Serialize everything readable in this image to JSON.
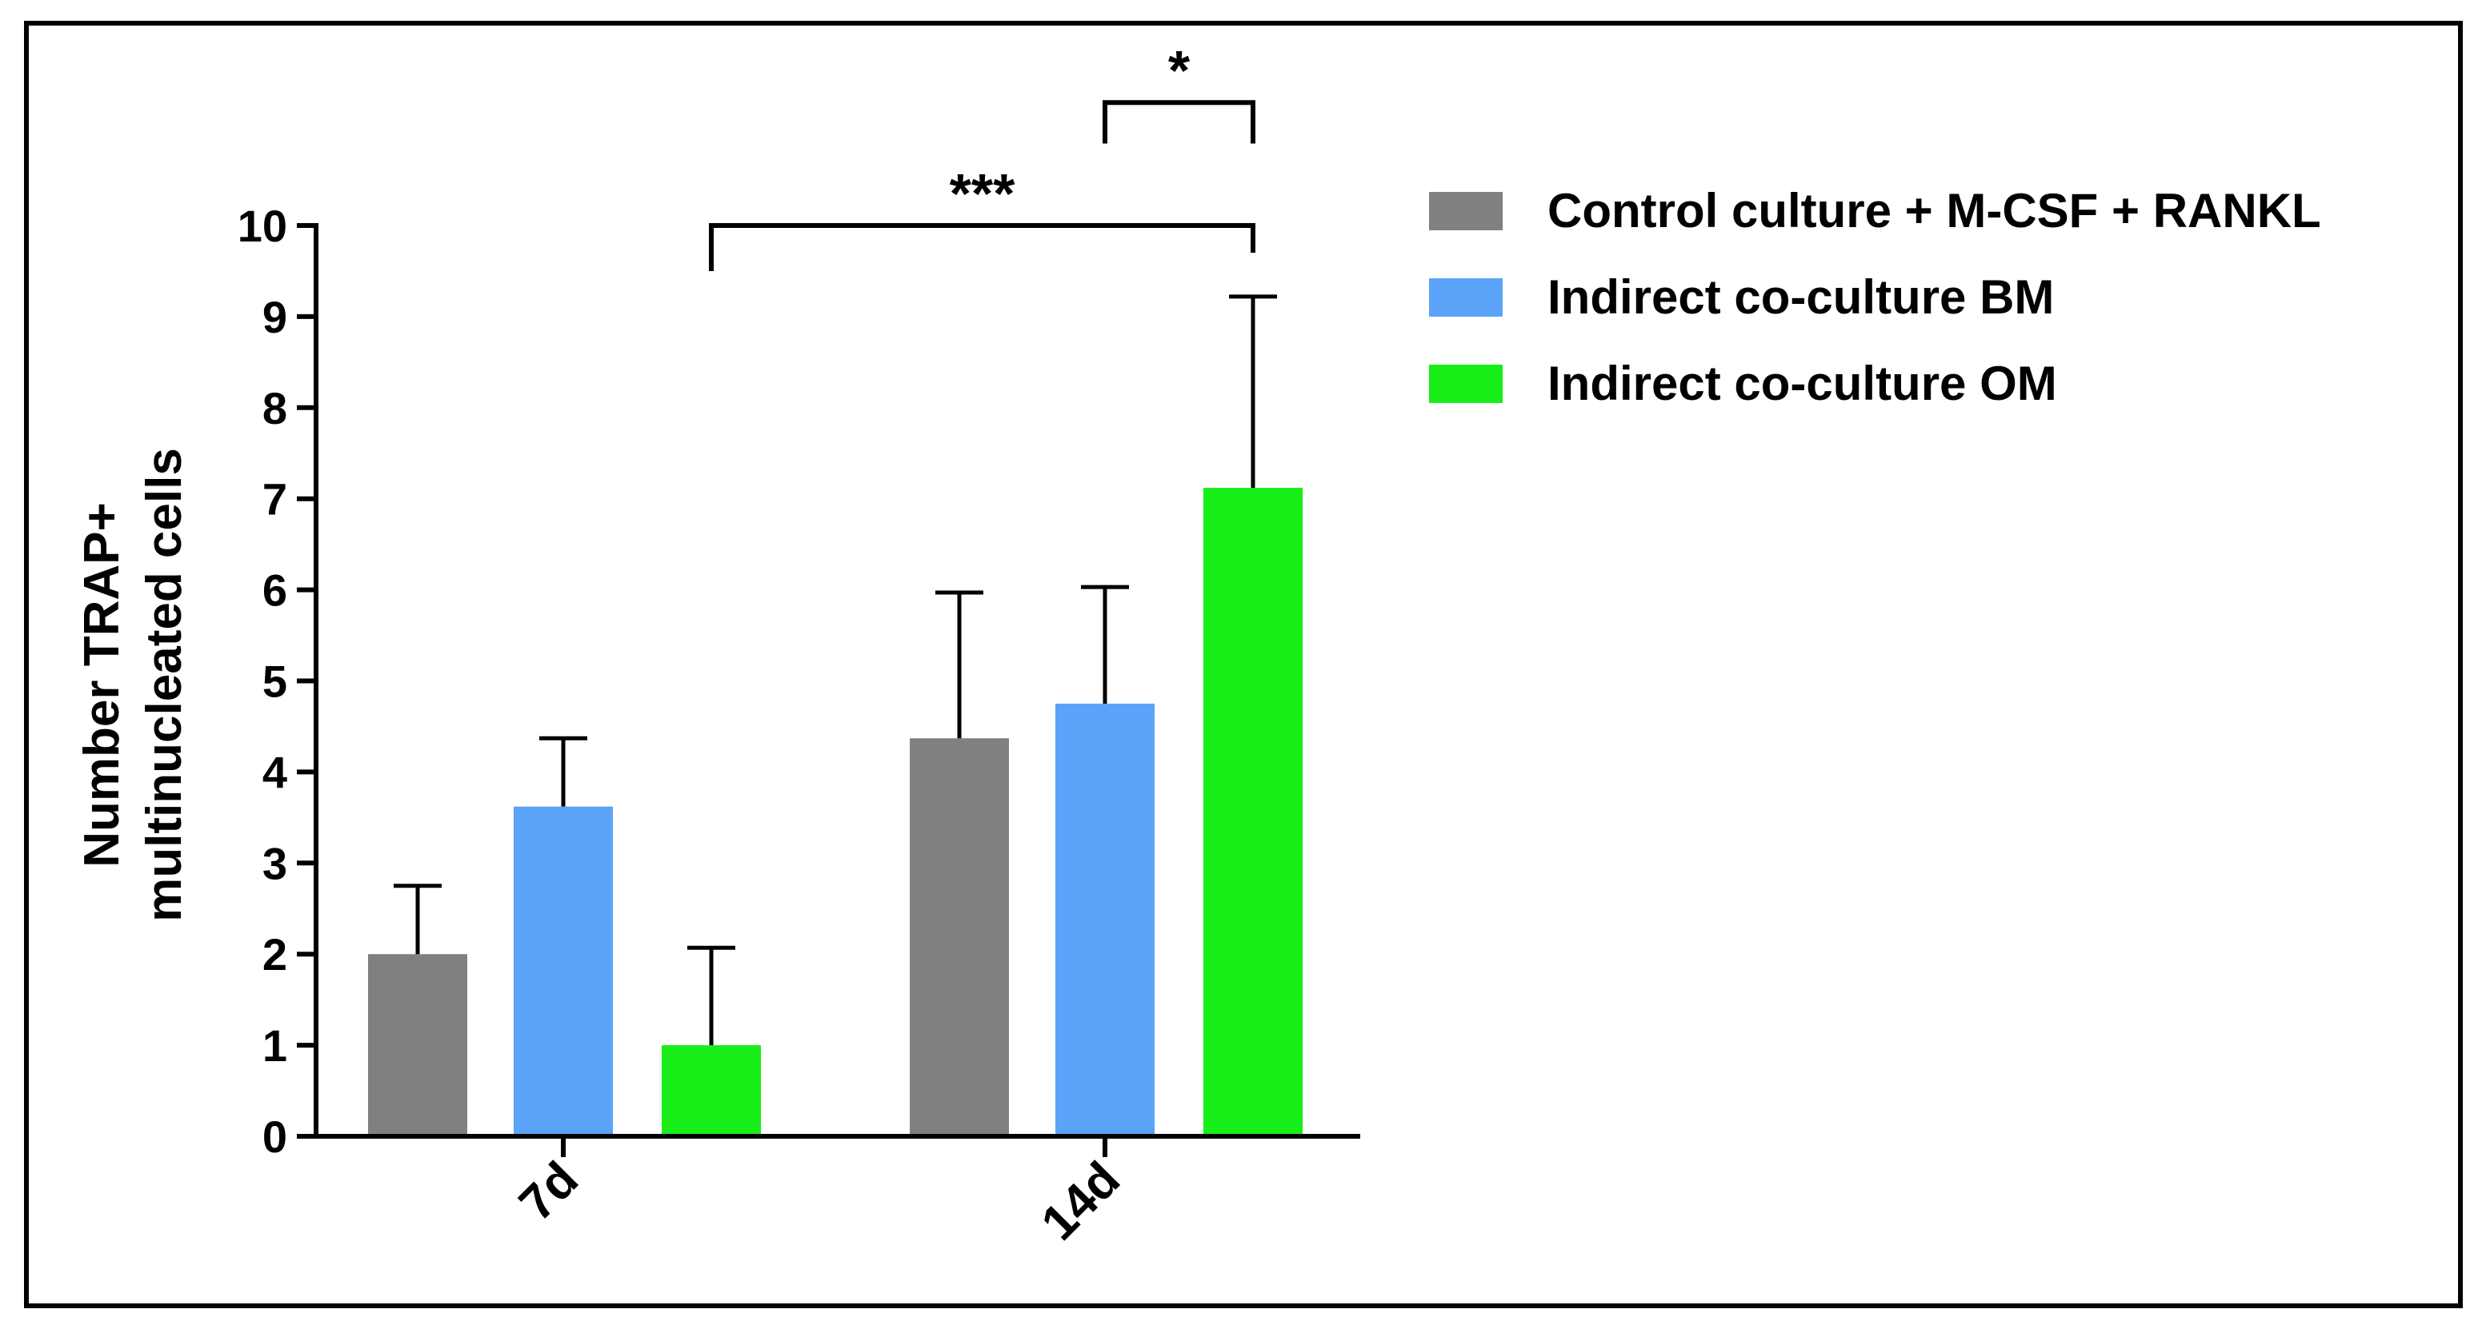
{
  "chart_data": {
    "type": "bar",
    "title": "",
    "xlabel": "",
    "ylabel_line1": "Number TRAP+",
    "ylabel_line2": "multinucleated cells",
    "ylim": [
      0,
      10
    ],
    "yticks": [
      "0",
      "1",
      "2",
      "3",
      "4",
      "5",
      "6",
      "7",
      "8",
      "9",
      "10"
    ],
    "categories": [
      "7d",
      "14d"
    ],
    "series": [
      {
        "name": "Control culture + M-CSF + RANKL",
        "color": "#808080",
        "values": [
          2.0,
          4.37
        ],
        "errors": [
          0.75,
          1.6
        ]
      },
      {
        "name": "Indirect co-culture BM",
        "color": "#5aa3f8",
        "values": [
          3.62,
          4.75
        ],
        "errors": [
          0.75,
          1.28
        ]
      },
      {
        "name": "Indirect co-culture OM",
        "color": "#18ee18",
        "values": [
          1.0,
          7.12
        ],
        "errors": [
          1.07,
          2.1
        ]
      }
    ],
    "annotations": [
      {
        "label": "***",
        "from": {
          "category": 0,
          "series": 2
        },
        "to": {
          "category": 1,
          "series": 2
        },
        "level": 10.0,
        "drop_from": 9.5,
        "drop_to": 9.7
      },
      {
        "label": "*",
        "from": {
          "category": 1,
          "series": 1
        },
        "to": {
          "category": 1,
          "series": 2
        },
        "level": 11.35,
        "drop_from": 10.9,
        "drop_to": 10.9
      }
    ],
    "legend_position": "top-right"
  }
}
